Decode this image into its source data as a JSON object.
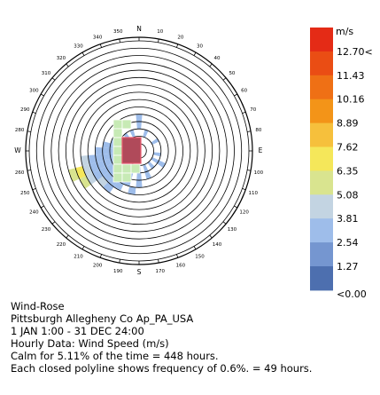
{
  "chart_data": {
    "type": "wind-rose",
    "title": "Wind-Rose",
    "legend_unit": "m/s",
    "legend": {
      "labels": [
        "12.70<",
        "11.43",
        "10.16",
        "8.89",
        "7.62",
        "6.35",
        "5.08",
        "3.81",
        "2.54",
        "1.27",
        "<0.00"
      ],
      "colors": [
        "#e42b16",
        "#ea4d14",
        "#ef7015",
        "#f39418",
        "#f6c03c",
        "#f5e75a",
        "#d9e48f",
        "#c3d4e2",
        "#9ebdea",
        "#7596d0",
        "#4d6faf"
      ]
    },
    "rings": 15,
    "directions": {
      "labels": [
        "N",
        "10",
        "20",
        "30",
        "40",
        "50",
        "60",
        "70",
        "80",
        "E",
        "100",
        "110",
        "120",
        "130",
        "140",
        "150",
        "160",
        "170",
        "S",
        "190",
        "200",
        "210",
        "220",
        "230",
        "240",
        "250",
        "260",
        "W",
        "280",
        "290",
        "300",
        "310",
        "320",
        "330",
        "340",
        "350"
      ]
    },
    "cells": [
      {
        "dir": 0,
        "ring": 3,
        "color": "#9ebdea"
      },
      {
        "dir": 0,
        "ring": 4,
        "color": "#9ebdea"
      },
      {
        "dir": 20,
        "ring": 2,
        "color": "#9ebdea"
      },
      {
        "dir": 60,
        "ring": 2,
        "color": "#9ebdea"
      },
      {
        "dir": 100,
        "ring": 2,
        "color": "#9ebdea"
      },
      {
        "dir": 120,
        "ring": 2,
        "color": "#9ebdea"
      },
      {
        "dir": 120,
        "ring": 3,
        "color": "#9ebdea"
      },
      {
        "dir": 140,
        "ring": 2,
        "color": "#9ebdea"
      },
      {
        "dir": 160,
        "ring": 2,
        "color": "#9ebdea"
      },
      {
        "dir": 160,
        "ring": 3,
        "color": "#9ebdea"
      },
      {
        "dir": 180,
        "ring": 2,
        "color": "#9ebdea"
      },
      {
        "dir": 180,
        "ring": 3,
        "color": "#9ebdea"
      },
      {
        "dir": 180,
        "ring": 4,
        "color": "#9ebdea"
      },
      {
        "dir": 190,
        "ring": 5,
        "color": "#9ebdea"
      },
      {
        "dir": 200,
        "ring": 2,
        "color": "#9ebdea"
      },
      {
        "dir": 200,
        "ring": 3,
        "color": "#9ebdea"
      },
      {
        "dir": 200,
        "ring": 4,
        "color": "#9ebdea"
      },
      {
        "dir": 210,
        "ring": 2,
        "color": "#9ebdea"
      },
      {
        "dir": 210,
        "ring": 3,
        "color": "#9ebdea"
      },
      {
        "dir": 210,
        "ring": 4,
        "color": "#9ebdea"
      },
      {
        "dir": 210,
        "ring": 5,
        "color": "#9ebdea"
      },
      {
        "dir": 220,
        "ring": 2,
        "color": "#9ebdea"
      },
      {
        "dir": 220,
        "ring": 3,
        "color": "#9ebdea"
      },
      {
        "dir": 220,
        "ring": 4,
        "color": "#9ebdea"
      },
      {
        "dir": 220,
        "ring": 5,
        "color": "#9ebdea"
      },
      {
        "dir": 220,
        "ring": 6,
        "color": "#9ebdea"
      },
      {
        "dir": 230,
        "ring": 2,
        "color": "#9ebdea"
      },
      {
        "dir": 230,
        "ring": 3,
        "color": "#9ebdea"
      },
      {
        "dir": 230,
        "ring": 4,
        "color": "#9ebdea"
      },
      {
        "dir": 230,
        "ring": 5,
        "color": "#9ebdea"
      },
      {
        "dir": 230,
        "ring": 6,
        "color": "#c3d4e2"
      },
      {
        "dir": 240,
        "ring": 2,
        "color": "#9ebdea"
      },
      {
        "dir": 240,
        "ring": 3,
        "color": "#9ebdea"
      },
      {
        "dir": 240,
        "ring": 4,
        "color": "#9ebdea"
      },
      {
        "dir": 240,
        "ring": 5,
        "color": "#9ebdea"
      },
      {
        "dir": 240,
        "ring": 6,
        "color": "#9ebdea"
      },
      {
        "dir": 240,
        "ring": 7,
        "color": "#c3d4e2"
      },
      {
        "dir": 240,
        "ring": 8,
        "color": "#d9e48f"
      },
      {
        "dir": 250,
        "ring": 2,
        "color": "#9ebdea"
      },
      {
        "dir": 250,
        "ring": 3,
        "color": "#9ebdea"
      },
      {
        "dir": 250,
        "ring": 4,
        "color": "#9ebdea"
      },
      {
        "dir": 250,
        "ring": 5,
        "color": "#9ebdea"
      },
      {
        "dir": 250,
        "ring": 6,
        "color": "#9ebdea"
      },
      {
        "dir": 250,
        "ring": 7,
        "color": "#c3d4e2"
      },
      {
        "dir": 250,
        "ring": 8,
        "color": "#f5e75a"
      },
      {
        "dir": 250,
        "ring": 9,
        "color": "#d9e48f"
      },
      {
        "dir": 260,
        "ring": 2,
        "color": "#9ebdea"
      },
      {
        "dir": 260,
        "ring": 3,
        "color": "#9ebdea"
      },
      {
        "dir": 260,
        "ring": 4,
        "color": "#9ebdea"
      },
      {
        "dir": 260,
        "ring": 5,
        "color": "#9ebdea"
      },
      {
        "dir": 260,
        "ring": 6,
        "color": "#9ebdea"
      },
      {
        "dir": 260,
        "ring": 7,
        "color": "#c3d4e2"
      },
      {
        "dir": 270,
        "ring": 2,
        "color": "#9ebdea"
      },
      {
        "dir": 270,
        "ring": 3,
        "color": "#9ebdea"
      },
      {
        "dir": 270,
        "ring": 4,
        "color": "#9ebdea"
      },
      {
        "dir": 270,
        "ring": 5,
        "color": "#9ebdea"
      },
      {
        "dir": 280,
        "ring": 2,
        "color": "#9ebdea"
      },
      {
        "dir": 280,
        "ring": 3,
        "color": "#9ebdea"
      },
      {
        "dir": 280,
        "ring": 4,
        "color": "#9ebdea"
      },
      {
        "dir": 290,
        "ring": 2,
        "color": "#9ebdea"
      },
      {
        "dir": 290,
        "ring": 3,
        "color": "#9ebdea"
      },
      {
        "dir": 300,
        "ring": 2,
        "color": "#9ebdea"
      },
      {
        "dir": 300,
        "ring": 3,
        "color": "#9ebdea"
      },
      {
        "dir": 320,
        "ring": 2,
        "color": "#9ebdea"
      },
      {
        "dir": 340,
        "ring": 2,
        "color": "#9ebdea"
      }
    ],
    "calm_block": {
      "color": "#b04a5a",
      "edge": "#e8596e"
    },
    "grid_cells_color": "#c7eab5"
  },
  "caption": {
    "line1": "Wind-Rose",
    "line2": "Pittsburgh Allegheny Co Ap_PA_USA",
    "line3": "1 JAN 1:00 - 31 DEC 24:00",
    "line4": "Hourly Data: Wind Speed (m/s)",
    "line5": "Calm for 5.11% of the time = 448 hours.",
    "line6": "Each closed polyline shows frequency of 0.6%. = 49 hours."
  }
}
